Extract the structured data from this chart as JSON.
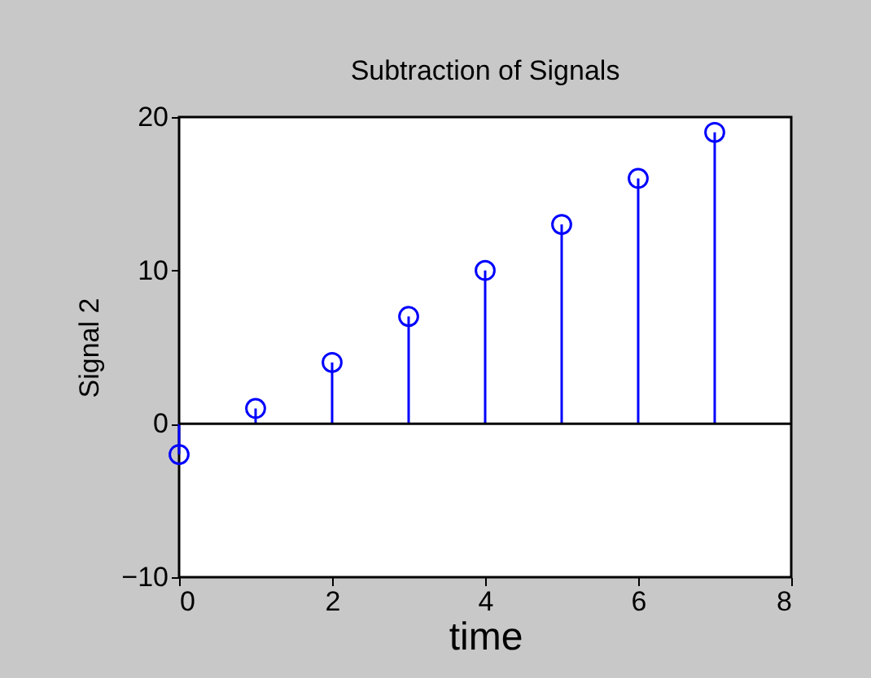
{
  "chart_data": {
    "type": "lollipop",
    "title": "Subtraction of Signals",
    "xlabel": "time",
    "ylabel": "Signal 2",
    "x": [
      0,
      1,
      2,
      3,
      4,
      5,
      6,
      7
    ],
    "series": [
      {
        "color": "#0000ff",
        "values": [
          -2,
          1,
          4,
          7,
          10,
          13,
          16,
          19
        ]
      }
    ],
    "xlim": [
      0,
      8
    ],
    "xticks": [
      0,
      2,
      4,
      6,
      8
    ],
    "ylim": [
      -10,
      20
    ],
    "yticks": [
      -10,
      0,
      10,
      20
    ],
    "ref_lines": [
      {
        "axis": "y",
        "value": 0,
        "color": "#000000"
      }
    ],
    "marker": "circle",
    "grid": false
  }
}
